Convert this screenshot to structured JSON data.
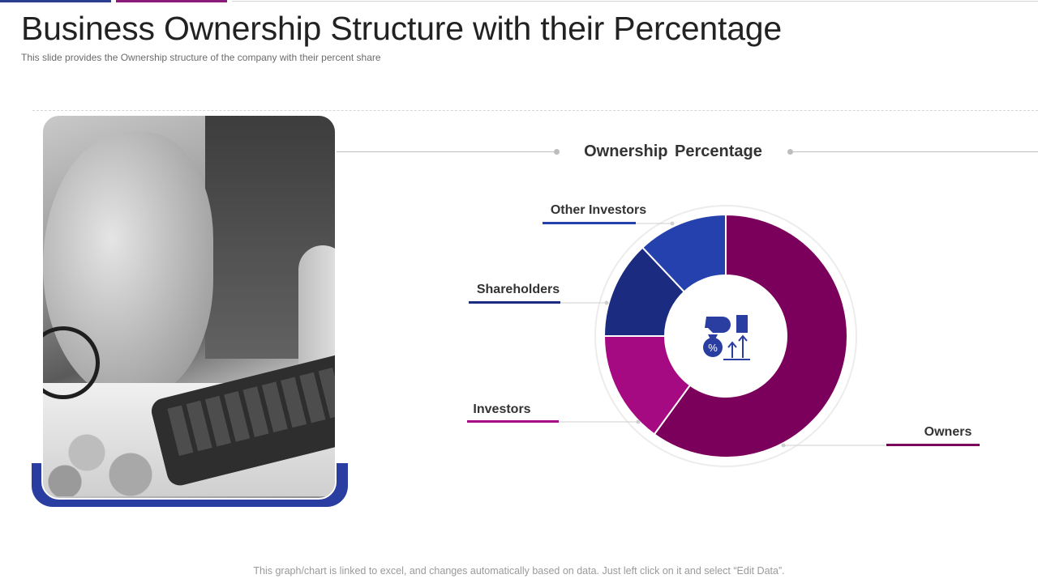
{
  "slide": {
    "title": "Business Ownership Structure with their Percentage",
    "subtitle": "This slide provides the Ownership structure of the company with their percent share",
    "footer": "This graph/chart is linked to excel, and changes automatically based on data. Just left click on it and select “Edit Data”."
  },
  "photo": {
    "subject": "hand-with-pen-and-calculator-photo"
  },
  "center_icon": "hand-money-bag-growth-icon",
  "colors": {
    "accent_blue": "#2a3da0",
    "accent_purple": "#8a1b78",
    "owners": "#7b005c",
    "investors": "#a60a82",
    "shareholders": "#1b2c80",
    "other_investors": "#2541ad"
  },
  "chart_data": {
    "type": "pie",
    "donut": true,
    "title": "Ownership Percentage",
    "categories": [
      "Owners",
      "Investors",
      "Shareholders",
      "Other Investors"
    ],
    "values": [
      60,
      15,
      13,
      12
    ],
    "legend": "callout-labels"
  }
}
